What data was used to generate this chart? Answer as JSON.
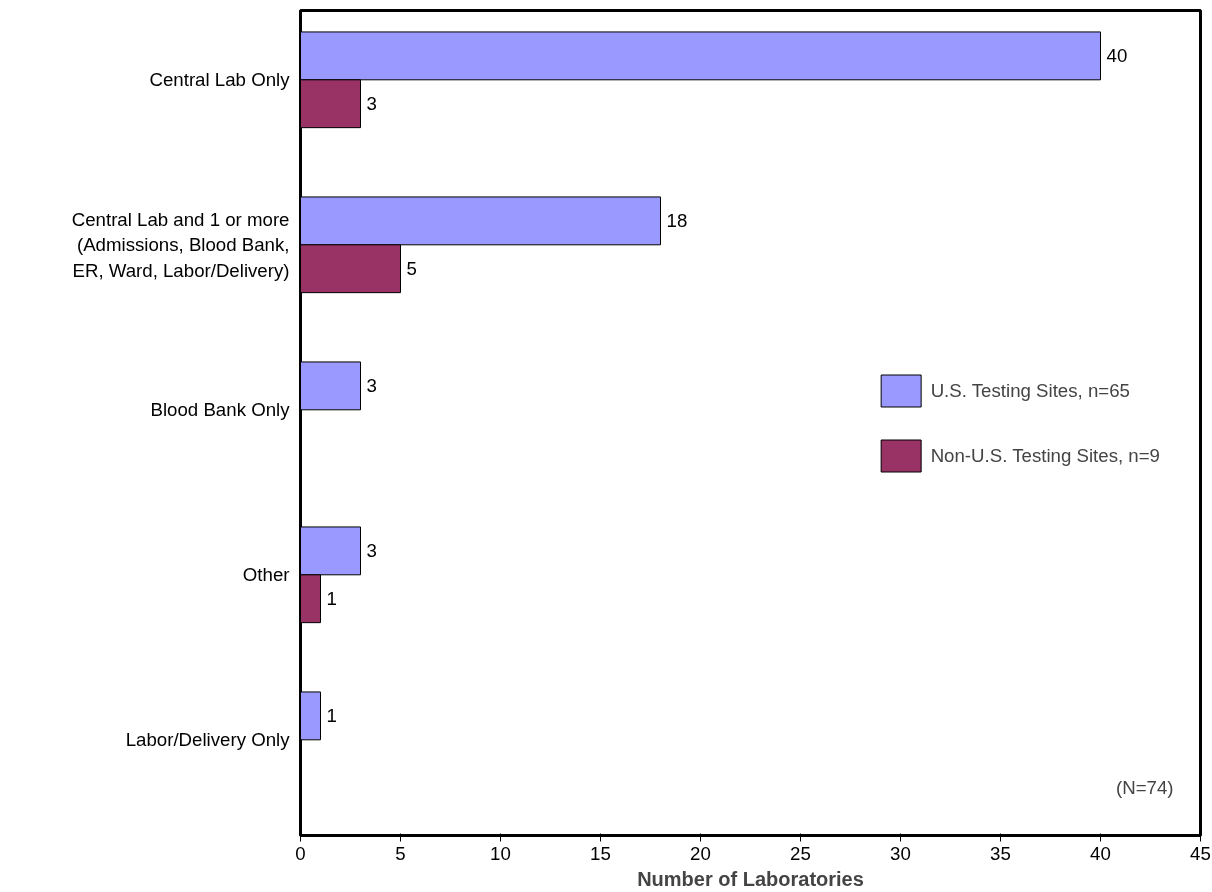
{
  "chart_data": {
    "type": "bar",
    "orientation": "horizontal",
    "categories": [
      "Central Lab Only",
      "Central Lab and 1 or more\n(Admissions, Blood Bank,\nER, Ward, Labor/Delivery)",
      "Blood Bank Only",
      "Other",
      "Labor/Delivery Only"
    ],
    "series": [
      {
        "name": "U.S. Testing Sites, n=65",
        "color": "#9999ff",
        "values": [
          40,
          18,
          3,
          3,
          1
        ]
      },
      {
        "name": "Non-U.S. Testing Sites, n=9",
        "color": "#993366",
        "values": [
          3,
          5,
          null,
          1,
          null
        ]
      }
    ],
    "xlabel": "Number of Laboratories",
    "xlim": [
      0,
      45
    ],
    "xticks": [
      0,
      5,
      10,
      15,
      20,
      25,
      30,
      35,
      40,
      45
    ],
    "data_labels": true,
    "grid": false,
    "legend": "right",
    "annotations": [
      "(N=74)"
    ]
  }
}
